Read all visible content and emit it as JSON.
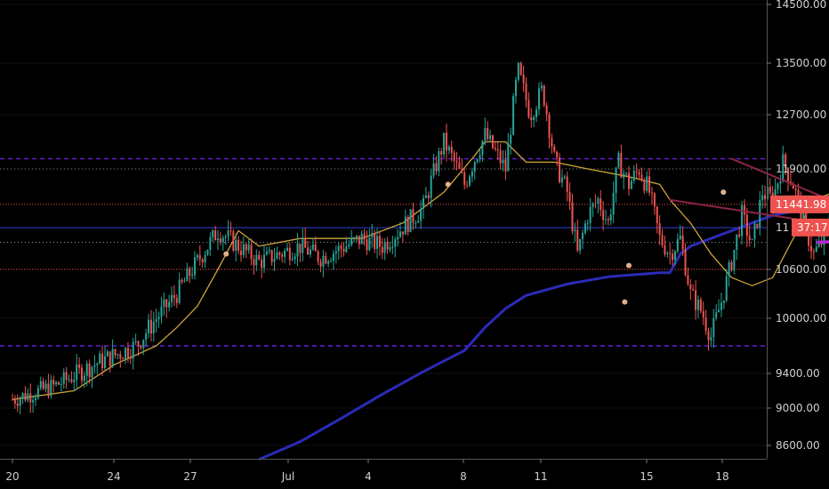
{
  "chart_data": {
    "type": "candlestick",
    "title": "",
    "xlabel": "",
    "ylabel": "",
    "ylim": [
      8450,
      14600
    ],
    "x_ticks": [
      "20",
      "24",
      "27",
      "Jul",
      "4",
      "8",
      "11",
      "15",
      "18"
    ],
    "y_ticks": [
      14500,
      13500,
      12700,
      11900,
      10600,
      10000,
      9400,
      9000,
      8600
    ],
    "price_badge": {
      "value": "11441.98",
      "color": "#ef5350"
    },
    "time_badge": {
      "value": "37:17",
      "color": "#ef5350"
    },
    "partial_label": "11",
    "price_path_x": [
      0,
      2,
      4,
      6,
      8,
      10,
      12,
      14,
      15,
      17,
      18,
      20,
      21,
      22,
      23,
      24,
      24.6,
      25.2,
      25.8,
      26.4,
      27,
      27.5,
      28,
      28.5,
      29,
      29.5,
      30,
      30.5,
      31,
      31.5,
      32,
      32.5,
      33,
      33.5,
      34,
      34.5,
      35,
      35.5,
      36,
      36.5,
      37,
      37.5,
      38,
      38.5,
      39,
      39.5,
      40,
      40.5,
      41,
      41.5,
      42
    ],
    "price_path_y": [
      9100,
      9250,
      9500,
      9700,
      10300,
      11100,
      10700,
      10900,
      10750,
      11000,
      10900,
      11400,
      12300,
      11700,
      12400,
      11900,
      13400,
      12700,
      13100,
      12000,
      11600,
      10800,
      11300,
      11500,
      11200,
      12000,
      11700,
      11900,
      11600,
      11000,
      10800,
      11000,
      10300,
      10100,
      9800,
      10200,
      10700,
      11300,
      10900,
      11600,
      11500,
      12000,
      11700,
      11200,
      10800,
      11000,
      11450,
      11300,
      11500,
      11400,
      11441.98
    ],
    "up_color": "#26a69a",
    "down_color": "#ef5350",
    "x_min": -0.5,
    "x_max": 48.5,
    "last_index": 42,
    "ma_slow": {
      "color": "#2b2bb8",
      "x": [
        12.0,
        14.0,
        16.0,
        18.0,
        20.0,
        22.0,
        23.0,
        24.0,
        25.0,
        27.0,
        29.0,
        31.5,
        32.0,
        32.5,
        33.0,
        34.0,
        35.0,
        36.0,
        37.0,
        38.0,
        39.0,
        40.0,
        41.0,
        42.0
      ],
      "y": [
        8450,
        8640,
        8890,
        9160,
        9420,
        9650,
        9900,
        10120,
        10280,
        10420,
        10510,
        10560,
        10560,
        10800,
        10900,
        11000,
        11100,
        11200,
        11300,
        11350,
        11420,
        11470,
        11490,
        11500
      ]
    },
    "ma_fast": {
      "color": "#cfa33a",
      "x": [
        0,
        3,
        5,
        7,
        8,
        9,
        10,
        11,
        12,
        14,
        17,
        19,
        21,
        22.5,
        23,
        24,
        25,
        25.6,
        26.4,
        28,
        30,
        31.5,
        32,
        33,
        34,
        35,
        36,
        37,
        38,
        39,
        40,
        41,
        42
      ],
      "y": [
        9100,
        9200,
        9500,
        9700,
        9900,
        10150,
        10600,
        11100,
        10900,
        11000,
        11000,
        11200,
        11600,
        12100,
        12300,
        12300,
        12000,
        12000,
        12000,
        11900,
        11800,
        11700,
        11500,
        11200,
        10800,
        10500,
        10400,
        10500,
        11000,
        11500,
        11600,
        11500,
        11500
      ]
    },
    "hlines": [
      {
        "y": 12050,
        "color": "#6a1bd6",
        "dash": "5,4",
        "width": 1.4
      },
      {
        "y": 11900,
        "color": "#7f7f7f",
        "dash": "1,3",
        "width": 1
      },
      {
        "y": 11441.98,
        "color": "#ef5350",
        "dash": "1,2",
        "width": 1
      },
      {
        "y": 11140,
        "color": "#2b3bb3",
        "dash": "",
        "width": 1.2
      },
      {
        "y": 10950,
        "color": "#9e9e9e",
        "dash": "1,3",
        "width": 1
      },
      {
        "y": 10600,
        "color": "#ef5350",
        "dash": "1,2",
        "width": 1
      },
      {
        "y": 9700,
        "color": "#6a1bd6",
        "dash": "5,4",
        "width": 1.4
      }
    ],
    "trendlines": [
      {
        "x1": 35.0,
        "y1": 12050,
        "x2": 44.3,
        "y2": 11000,
        "color": "#8a2446",
        "width": 2
      },
      {
        "x1": 32.0,
        "y1": 11500,
        "x2": 44.3,
        "y2": 11000,
        "color": "#8a2446",
        "width": 2
      },
      {
        "x1": 39.2,
        "y1": 10950,
        "x2": 48.0,
        "y2": 11080,
        "color": "#b12ad1",
        "width": 3.5
      }
    ],
    "arrows": [
      {
        "x1": 44.0,
        "y1": 10900,
        "x2": 45.3,
        "y2": 9800,
        "color": "#8a1030"
      },
      {
        "x1": 47.5,
        "y1": 9840,
        "x2": 55.0,
        "y2": 9840,
        "color": "#137a13"
      },
      {
        "x1": 57.3,
        "y1": 9840,
        "x2": 64.0,
        "y2": 13000,
        "color": "#137a13"
      }
    ],
    "markers": [
      {
        "x": 21.2,
        "y": 11700,
        "color": "#e0b08a"
      },
      {
        "x": 10.4,
        "y": 10800,
        "color": "#e0b08a"
      },
      {
        "x": 34.6,
        "y": 11600,
        "color": "#e0b08a"
      },
      {
        "x": 30.0,
        "y": 10650,
        "color": "#e0b08a"
      },
      {
        "x": 29.8,
        "y": 10200,
        "color": "#e0b08a"
      }
    ]
  }
}
